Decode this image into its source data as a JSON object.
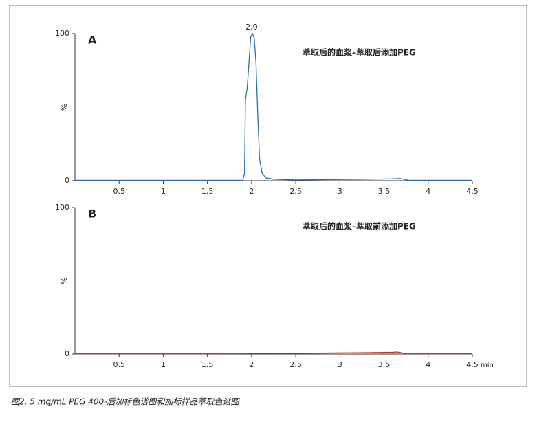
{
  "chart_data": [
    {
      "type": "line",
      "label": "A",
      "title": "萃取后的血浆–萃取后添加PEG",
      "y_label": "%",
      "x": [
        0,
        0.5,
        1.0,
        1.5,
        1.9,
        1.92,
        1.93,
        1.95,
        1.97,
        1.99,
        2.01,
        2.03,
        2.05,
        2.07,
        2.09,
        2.12,
        2.16,
        2.25,
        2.5,
        2.9,
        3.3,
        3.6,
        3.68,
        3.78,
        4.0,
        4.5
      ],
      "values": [
        0.3,
        0.3,
        0.3,
        0.3,
        0.3,
        5,
        55,
        63,
        80,
        98,
        100,
        97,
        80,
        45,
        15,
        5,
        2,
        1,
        0.5,
        0.8,
        1,
        1.3,
        1.5,
        0.3,
        0.3,
        0.3
      ],
      "color": "#2b6cb4",
      "xlim": [
        0,
        4.5
      ],
      "xticks": [
        0.5,
        1.0,
        1.5,
        2.0,
        2.5,
        3.0,
        3.5,
        4.0,
        4.5
      ],
      "ylim": [
        0,
        100
      ],
      "yticks": [
        0,
        100
      ],
      "annotations": [
        {
          "text": "2.0",
          "x": 2.0,
          "y": 100
        }
      ]
    },
    {
      "type": "line",
      "label": "B",
      "title": "萃取后的血浆–萃取前添加PEG",
      "y_label": "%",
      "x_label": "min",
      "x": [
        0,
        0.5,
        1.0,
        1.5,
        1.9,
        2.0,
        2.3,
        2.7,
        3.0,
        3.3,
        3.6,
        3.65,
        3.75,
        4.0,
        4.5
      ],
      "values": [
        0.2,
        0.2,
        0.2,
        0.2,
        0.3,
        0.6,
        0.4,
        0.6,
        0.8,
        0.9,
        1.2,
        1.4,
        0.3,
        0.2,
        0.2
      ],
      "color": "#c0392b",
      "xlim": [
        0,
        4.5
      ],
      "xticks": [
        0.5,
        1.0,
        1.5,
        2.0,
        2.5,
        3.0,
        3.5,
        4.0,
        4.5
      ],
      "ylim": [
        0,
        100
      ],
      "yticks": [
        0,
        100
      ]
    }
  ],
  "caption": "图2. 5 mg/mL PEG 400-后加标色谱图和加标样品萃取色谱图"
}
